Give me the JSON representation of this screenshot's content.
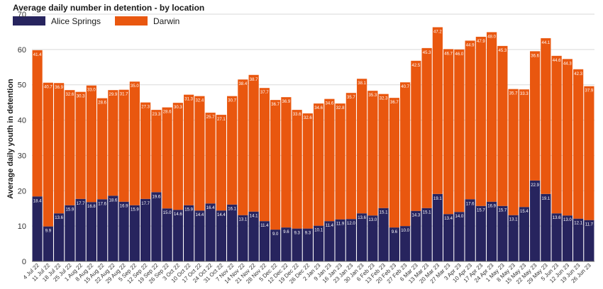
{
  "chart_data": {
    "type": "bar",
    "stacked": true,
    "title": "Average daily number in detention - by location",
    "ylabel": "Average daily youth in detention",
    "xlabel": "",
    "ylim": [
      0,
      70
    ],
    "yticks": [
      0,
      10,
      20,
      30,
      40,
      50,
      60,
      70
    ],
    "grid": true,
    "legend_position": "top-left",
    "categories": [
      "4 Jul 22",
      "11 Jul 22",
      "18 Jul 22",
      "25 Jul 22",
      "1 Aug 22",
      "8 Aug 22",
      "15 Aug 22",
      "22 Aug 22",
      "29 Aug 22",
      "5 Sep 22",
      "12 Sep 22",
      "19 Sep 22",
      "26 Sep 22",
      "3 Oct 22",
      "10 Oct 22",
      "17 Oct 22",
      "24 Oct 22",
      "31 Oct 22",
      "7 Nov 22",
      "14 Nov 22",
      "21 Nov 22",
      "28 Nov 22",
      "5 Dec 22",
      "12 Dec 22",
      "19 Dec 22",
      "26 Dec 22",
      "2 Jan 23",
      "9 Jan 23",
      "16 Jan 23",
      "23 Jan 23",
      "30 Jan 23",
      "6 Feb 23",
      "13 Feb 23",
      "20 Feb 23",
      "27 Feb 23",
      "6 Mar 23",
      "13 Mar 23",
      "20 Mar 23",
      "27 Mar 23",
      "3 Apr 23",
      "10 Apr 23",
      "17 Apr 23",
      "24 Apr 23",
      "1 May 23",
      "8 May 23",
      "15 May 23",
      "22 May 23",
      "29 May 23",
      "5 Jun 23",
      "12 Jun 23",
      "19 Jun 23",
      "26 Jun 23"
    ],
    "series": [
      {
        "name": "Alice Springs",
        "color": "#27245e",
        "values": [
          18.4,
          9.9,
          13.6,
          15.9,
          17.7,
          16.8,
          17.6,
          18.6,
          16.9,
          15.9,
          17.7,
          19.6,
          15.0,
          14.6,
          15.9,
          14.4,
          16.4,
          14.4,
          16.1,
          13.1,
          14.1,
          11.4,
          9.0,
          9.6,
          9.3,
          9.3,
          10.1,
          11.4,
          11.9,
          12.0,
          13.6,
          13.0,
          15.1,
          9.6,
          10.0,
          14.3,
          15.1,
          19.1,
          13.4,
          14.0,
          17.6,
          15.7,
          16.9,
          15.7,
          13.1,
          15.4,
          22.9,
          19.1,
          13.6,
          13.0,
          12.1,
          11.7
        ]
      },
      {
        "name": "Darwin",
        "color": "#e9570f",
        "values": [
          41.4,
          40.7,
          36.9,
          32.6,
          30.3,
          33.0,
          28.6,
          29.9,
          31.7,
          35.0,
          27.3,
          23.3,
          28.6,
          30.3,
          31.3,
          32.4,
          25.7,
          27.1,
          30.7,
          38.4,
          38.7,
          37.7,
          36.7,
          36.9,
          33.6,
          32.6,
          34.6,
          34.6,
          32.8,
          35.7,
          38.1,
          35.3,
          32.3,
          36.7,
          40.7,
          42.5,
          45.3,
          47.2,
          46.7,
          46.0,
          44.9,
          47.9,
          48.0,
          45.3,
          35.7,
          33.3,
          36.6,
          44.1,
          44.6,
          44.3,
          42.3,
          37.9
        ]
      }
    ]
  }
}
